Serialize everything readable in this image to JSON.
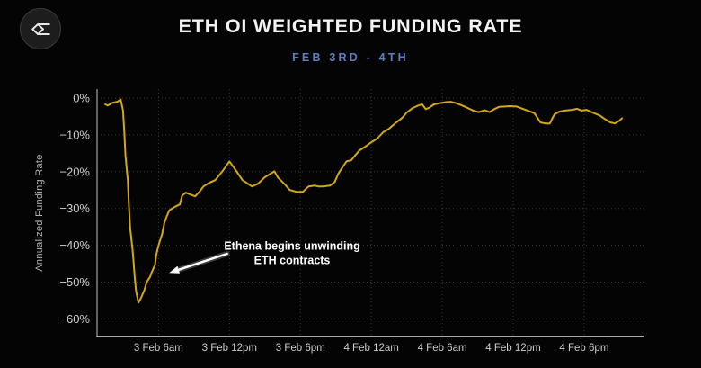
{
  "header": {
    "logo_icon": "sigma-diamond-logo",
    "title": "ETH OI WEIGHTED FUNDING RATE",
    "subtitle": "FEB 3RD - 4TH"
  },
  "colors": {
    "background": "#040404",
    "title": "#f2f2f2",
    "subtitle": "#5d80c5",
    "line": "#d3a716",
    "grid": "#3a3a3a",
    "spine_left": "#8a8a8a",
    "spine_bottom": "#a8a8a8",
    "tick_label": "#cdcdcd",
    "axis_title": "#b5b5b5",
    "annotation": "#ffffff"
  },
  "chart_data": {
    "type": "line",
    "title": "ETH OI WEIGHTED FUNDING RATE",
    "subtitle": "FEB 3RD - 4TH",
    "xlabel": "",
    "ylabel": "Annualized Funding Rate",
    "x_unit": "hours since 3 Feb 12am",
    "x_range": [
      0.8,
      47.1
    ],
    "y_range": [
      -64.8,
      2.45
    ],
    "grid": true,
    "legend": "none",
    "x_ticks": [
      {
        "t": 6,
        "label": "3 Feb 6am"
      },
      {
        "t": 12,
        "label": "3 Feb 12pm"
      },
      {
        "t": 18,
        "label": "3 Feb 6pm"
      },
      {
        "t": 24,
        "label": "4 Feb 12am"
      },
      {
        "t": 30,
        "label": "4 Feb 6am"
      },
      {
        "t": 36,
        "label": "4 Feb 12pm"
      },
      {
        "t": 42,
        "label": "4 Feb 6pm"
      }
    ],
    "y_ticks": [
      {
        "v": 0,
        "label": "0%"
      },
      {
        "v": -10,
        "label": "−10%"
      },
      {
        "v": -20,
        "label": "−20%"
      },
      {
        "v": -30,
        "label": "−30%"
      },
      {
        "v": -40,
        "label": "−40%"
      },
      {
        "v": -50,
        "label": "−50%"
      },
      {
        "v": -60,
        "label": "−60%"
      }
    ],
    "series": [
      {
        "name": "ETH OI weighted funding rate (annualized)",
        "color": "#d3a716",
        "points": [
          [
            1.5,
            -1.7
          ],
          [
            1.7,
            -2.0
          ],
          [
            2.1,
            -1.3
          ],
          [
            2.5,
            -1.0
          ],
          [
            2.8,
            -0.4
          ],
          [
            3.0,
            -3.4
          ],
          [
            3.1,
            -9.3
          ],
          [
            3.2,
            -15.7
          ],
          [
            3.4,
            -22.3
          ],
          [
            3.5,
            -29.7
          ],
          [
            3.6,
            -35.3
          ],
          [
            3.8,
            -41.2
          ],
          [
            3.9,
            -45.1
          ],
          [
            4.0,
            -49.3
          ],
          [
            4.1,
            -52.5
          ],
          [
            4.3,
            -55.6
          ],
          [
            4.5,
            -54.4
          ],
          [
            4.8,
            -52.2
          ],
          [
            5.0,
            -50.0
          ],
          [
            5.3,
            -48.5
          ],
          [
            5.4,
            -47.5
          ],
          [
            5.7,
            -45.3
          ],
          [
            5.8,
            -42.6
          ],
          [
            6.0,
            -40.0
          ],
          [
            6.3,
            -37.0
          ],
          [
            6.5,
            -33.8
          ],
          [
            6.7,
            -32.1
          ],
          [
            6.9,
            -30.6
          ],
          [
            7.1,
            -30.1
          ],
          [
            7.3,
            -29.7
          ],
          [
            7.6,
            -29.2
          ],
          [
            7.8,
            -28.9
          ],
          [
            8.0,
            -26.5
          ],
          [
            8.3,
            -25.7
          ],
          [
            8.7,
            -26.2
          ],
          [
            9.1,
            -26.7
          ],
          [
            9.5,
            -25.3
          ],
          [
            9.8,
            -24.0
          ],
          [
            10.3,
            -23.0
          ],
          [
            10.8,
            -22.3
          ],
          [
            11.4,
            -19.9
          ],
          [
            12.0,
            -17.2
          ],
          [
            12.6,
            -19.9
          ],
          [
            13.1,
            -22.3
          ],
          [
            13.9,
            -24.0
          ],
          [
            14.4,
            -23.3
          ],
          [
            15.0,
            -21.5
          ],
          [
            15.8,
            -19.9
          ],
          [
            16.1,
            -21.6
          ],
          [
            16.7,
            -23.5
          ],
          [
            17.1,
            -25.0
          ],
          [
            17.7,
            -25.5
          ],
          [
            18.2,
            -25.5
          ],
          [
            18.7,
            -24.0
          ],
          [
            19.2,
            -23.8
          ],
          [
            19.5,
            -24.0
          ],
          [
            19.9,
            -24.0
          ],
          [
            20.5,
            -23.8
          ],
          [
            20.9,
            -22.8
          ],
          [
            21.2,
            -20.6
          ],
          [
            21.6,
            -18.6
          ],
          [
            21.9,
            -17.2
          ],
          [
            22.3,
            -16.9
          ],
          [
            22.6,
            -15.7
          ],
          [
            23.0,
            -14.2
          ],
          [
            23.5,
            -13.2
          ],
          [
            24.0,
            -12.0
          ],
          [
            24.5,
            -11.0
          ],
          [
            25.0,
            -9.3
          ],
          [
            25.5,
            -8.3
          ],
          [
            26.0,
            -6.9
          ],
          [
            26.6,
            -5.4
          ],
          [
            27.0,
            -3.9
          ],
          [
            27.5,
            -2.7
          ],
          [
            27.9,
            -2.1
          ],
          [
            28.3,
            -1.7
          ],
          [
            28.6,
            -3.0
          ],
          [
            28.9,
            -2.6
          ],
          [
            29.3,
            -1.7
          ],
          [
            29.8,
            -1.4
          ],
          [
            30.3,
            -1.1
          ],
          [
            30.7,
            -1.0
          ],
          [
            31.1,
            -1.3
          ],
          [
            31.6,
            -1.9
          ],
          [
            32.1,
            -2.6
          ],
          [
            32.6,
            -3.4
          ],
          [
            33.1,
            -3.8
          ],
          [
            33.6,
            -3.3
          ],
          [
            34.0,
            -3.8
          ],
          [
            34.4,
            -3.0
          ],
          [
            34.8,
            -2.4
          ],
          [
            35.3,
            -2.3
          ],
          [
            35.7,
            -2.2
          ],
          [
            36.3,
            -2.3
          ],
          [
            36.8,
            -2.9
          ],
          [
            37.3,
            -3.5
          ],
          [
            37.8,
            -4.1
          ],
          [
            38.0,
            -5.1
          ],
          [
            38.3,
            -6.6
          ],
          [
            38.7,
            -6.9
          ],
          [
            39.1,
            -6.9
          ],
          [
            39.3,
            -5.6
          ],
          [
            39.5,
            -4.4
          ],
          [
            39.9,
            -3.7
          ],
          [
            40.4,
            -3.4
          ],
          [
            41.0,
            -3.2
          ],
          [
            41.4,
            -2.9
          ],
          [
            41.8,
            -3.4
          ],
          [
            42.2,
            -3.2
          ],
          [
            42.7,
            -3.9
          ],
          [
            43.3,
            -4.7
          ],
          [
            43.7,
            -5.6
          ],
          [
            44.2,
            -6.6
          ],
          [
            44.6,
            -6.9
          ],
          [
            45.0,
            -6.1
          ],
          [
            45.2,
            -5.5
          ]
        ]
      }
    ],
    "annotation": {
      "line1": "Ethena begins unwinding",
      "line2": "ETH contracts",
      "text_t": 17.3,
      "text_v": -40.2,
      "arrow_tail_t": 11.8,
      "arrow_tail_v": -42.3,
      "arrow_tip_t": 6.9,
      "arrow_tip_v": -47.5
    }
  }
}
